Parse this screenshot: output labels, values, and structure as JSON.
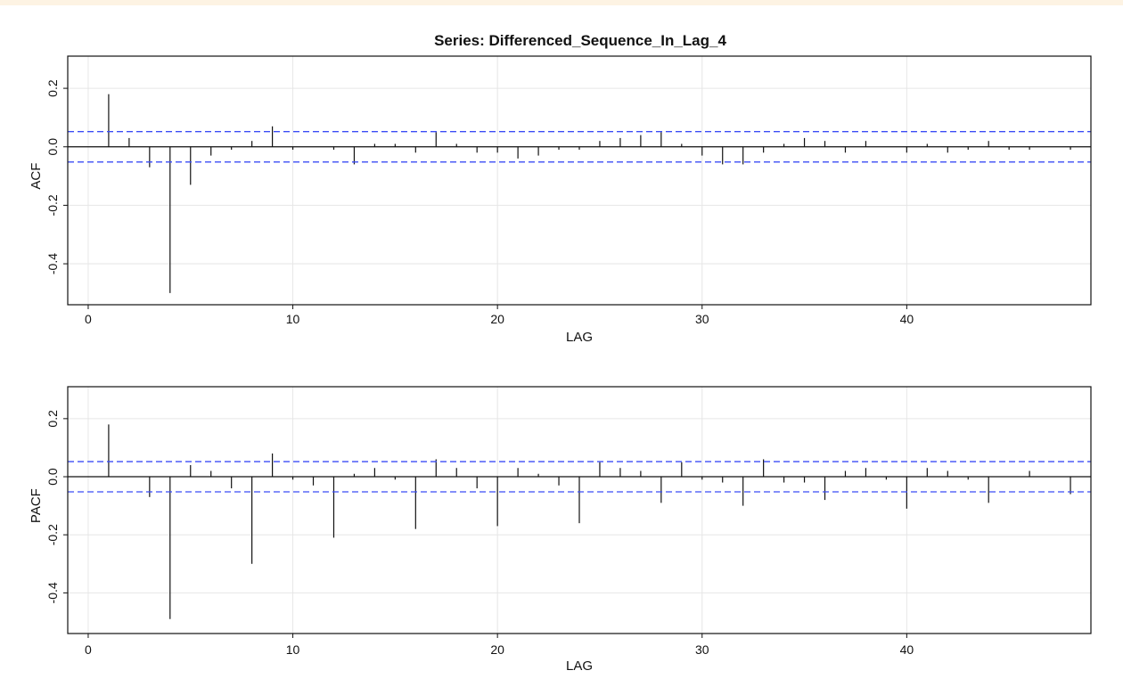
{
  "title": "Series:  Differenced_Sequence_In_Lag_4",
  "colors": {
    "background": "#ffffff",
    "top_strip": "#fdf3e3",
    "grid": "#e6e6e6",
    "bars": "#111111",
    "confidence": "#3b4cf5",
    "frame": "#111111"
  },
  "chart_data": [
    {
      "type": "bar",
      "name": "acf",
      "ylabel": "ACF",
      "xlabel": "LAG",
      "xlim": [
        -1,
        49
      ],
      "ylim": [
        -0.54,
        0.31
      ],
      "xticks": [
        0,
        10,
        20,
        30,
        40
      ],
      "yticks": [
        0.2,
        0.0,
        -0.2,
        -0.4
      ],
      "ytick_labels": [
        "0.2",
        "0.0",
        "-0.2",
        "-0.4"
      ],
      "grid": true,
      "conf_band": 0.052,
      "lags": [
        1,
        2,
        3,
        4,
        5,
        6,
        7,
        8,
        9,
        10,
        11,
        12,
        13,
        14,
        15,
        16,
        17,
        18,
        19,
        20,
        21,
        22,
        23,
        24,
        25,
        26,
        27,
        28,
        29,
        30,
        31,
        32,
        33,
        34,
        35,
        36,
        37,
        38,
        39,
        40,
        41,
        42,
        43,
        44,
        45,
        46,
        47,
        48
      ],
      "values": [
        0.18,
        0.03,
        -0.07,
        -0.5,
        -0.13,
        -0.03,
        -0.01,
        0.02,
        0.07,
        -0.01,
        0.0,
        -0.01,
        -0.06,
        0.01,
        0.01,
        -0.02,
        0.05,
        0.01,
        -0.02,
        -0.02,
        -0.04,
        -0.03,
        -0.01,
        -0.01,
        0.02,
        0.03,
        0.04,
        0.05,
        0.01,
        -0.03,
        -0.06,
        -0.06,
        -0.02,
        0.01,
        0.03,
        0.02,
        -0.02,
        0.02,
        0.0,
        -0.02,
        0.01,
        -0.02,
        -0.01,
        0.02,
        -0.01,
        -0.01,
        0.0,
        -0.01
      ]
    },
    {
      "type": "bar",
      "name": "pacf",
      "ylabel": "PACF",
      "xlabel": "LAG",
      "xlim": [
        -1,
        49
      ],
      "ylim": [
        -0.54,
        0.31
      ],
      "xticks": [
        0,
        10,
        20,
        30,
        40
      ],
      "yticks": [
        0.2,
        0.0,
        -0.2,
        -0.4
      ],
      "ytick_labels": [
        "0.2",
        "0.0",
        "-0.2",
        "-0.4"
      ],
      "grid": true,
      "conf_band": 0.052,
      "lags": [
        1,
        2,
        3,
        4,
        5,
        6,
        7,
        8,
        9,
        10,
        11,
        12,
        13,
        14,
        15,
        16,
        17,
        18,
        19,
        20,
        21,
        22,
        23,
        24,
        25,
        26,
        27,
        28,
        29,
        30,
        31,
        32,
        33,
        34,
        35,
        36,
        37,
        38,
        39,
        40,
        41,
        42,
        43,
        44,
        45,
        46,
        47,
        48
      ],
      "values": [
        0.18,
        0.0,
        -0.07,
        -0.49,
        0.04,
        0.02,
        -0.04,
        -0.3,
        0.08,
        -0.01,
        -0.03,
        -0.21,
        0.01,
        0.03,
        -0.01,
        -0.18,
        0.06,
        0.03,
        -0.04,
        -0.17,
        0.03,
        0.01,
        -0.03,
        -0.16,
        0.05,
        0.03,
        0.02,
        -0.09,
        0.05,
        -0.01,
        -0.02,
        -0.1,
        0.06,
        -0.02,
        -0.02,
        -0.08,
        0.02,
        0.03,
        -0.01,
        -0.11,
        0.03,
        0.02,
        -0.01,
        -0.09,
        0.0,
        0.02,
        0.0,
        -0.06
      ]
    }
  ]
}
